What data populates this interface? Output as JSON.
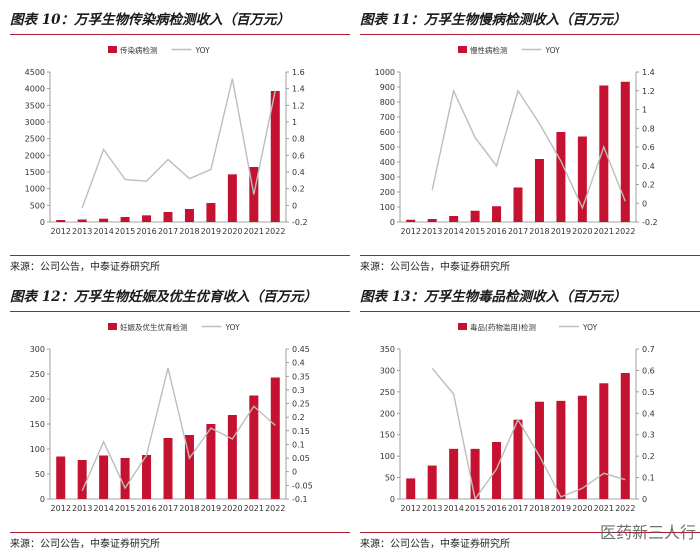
{
  "source_label": "来源：公司公告，中泰证券研究所",
  "watermark": "医药新三人行",
  "chart_data": [
    {
      "type": "bar",
      "title": "图表 10：万孚生物传染病检测收入（百万元）",
      "categories": [
        "2012",
        "2013",
        "2014",
        "2015",
        "2016",
        "2017",
        "2018",
        "2019",
        "2020",
        "2021",
        "2022"
      ],
      "series": [
        {
          "name": "传染病检测",
          "type": "bar",
          "axis": "left",
          "values": [
            60,
            75,
            100,
            150,
            200,
            300,
            390,
            570,
            1430,
            1650,
            3930
          ]
        },
        {
          "name": "YOY",
          "type": "line",
          "axis": "right",
          "values": [
            null,
            -0.03,
            0.67,
            0.31,
            0.29,
            0.55,
            0.32,
            0.43,
            1.52,
            0.13,
            1.38
          ]
        }
      ],
      "left_axis": {
        "min": 0,
        "max": 4500,
        "ticks": [
          "0",
          "500",
          "1000",
          "1500",
          "2000",
          "2500",
          "3000",
          "3500",
          "4000",
          "4500"
        ]
      },
      "right_axis": {
        "min": -0.2,
        "max": 1.6,
        "ticks": [
          "-0.2",
          "0",
          "0.2",
          "0.4",
          "0.6",
          "0.8",
          "1",
          "1.2",
          "1.4",
          "1.6"
        ]
      },
      "colors": {
        "bar": "#c41230",
        "line": "#bdbdbd"
      },
      "legend": "top"
    },
    {
      "type": "bar",
      "title": "图表 11：万孚生物慢病检测收入（百万元）",
      "categories": [
        "2012",
        "2013",
        "2014",
        "2015",
        "2016",
        "2017",
        "2018",
        "2019",
        "2020",
        "2021",
        "2022"
      ],
      "series": [
        {
          "name": "慢性病检测",
          "type": "bar",
          "axis": "left",
          "values": [
            15,
            20,
            40,
            75,
            105,
            230,
            420,
            600,
            570,
            910,
            935
          ]
        },
        {
          "name": "YOY",
          "type": "line",
          "axis": "right",
          "values": [
            null,
            0.14,
            1.2,
            0.7,
            0.4,
            1.2,
            0.85,
            0.45,
            -0.05,
            0.6,
            0.02
          ]
        }
      ],
      "left_axis": {
        "min": 0,
        "max": 1000,
        "ticks": [
          "0",
          "100",
          "200",
          "300",
          "400",
          "500",
          "600",
          "700",
          "800",
          "900",
          "1000"
        ]
      },
      "right_axis": {
        "min": -0.2,
        "max": 1.4,
        "ticks": [
          "-0.2",
          "0",
          "0.2",
          "0.4",
          "0.6",
          "0.8",
          "1",
          "1.2",
          "1.4"
        ]
      },
      "colors": {
        "bar": "#c41230",
        "line": "#bdbdbd"
      },
      "legend": "top"
    },
    {
      "type": "bar",
      "title": "图表 12：万孚生物妊娠及优生优育收入（百万元）",
      "categories": [
        "2012",
        "2013",
        "2014",
        "2015",
        "2016",
        "2017",
        "2018",
        "2019",
        "2020",
        "2021",
        "2022"
      ],
      "series": [
        {
          "name": "妊娠及优生优育检测",
          "type": "bar",
          "axis": "left",
          "values": [
            85,
            78,
            87,
            82,
            88,
            122,
            128,
            150,
            168,
            207,
            243
          ]
        },
        {
          "name": "YOY",
          "type": "line",
          "axis": "right",
          "values": [
            null,
            -0.07,
            0.11,
            -0.06,
            0.06,
            0.38,
            0.05,
            0.16,
            0.12,
            0.24,
            0.17
          ]
        }
      ],
      "left_axis": {
        "min": 0,
        "max": 300,
        "ticks": [
          "0",
          "50",
          "100",
          "150",
          "200",
          "250",
          "300"
        ]
      },
      "right_axis": {
        "min": -0.1,
        "max": 0.45,
        "ticks": [
          "-0.1",
          "-0.05",
          "0",
          "0.05",
          "0.1",
          "0.15",
          "0.2",
          "0.25",
          "0.3",
          "0.35",
          "0.4",
          "0.45"
        ]
      },
      "colors": {
        "bar": "#c41230",
        "line": "#bdbdbd"
      },
      "legend": "top"
    },
    {
      "type": "bar",
      "title": "图表 13：万孚生物毒品检测收入（百万元）",
      "categories": [
        "2012",
        "2013",
        "2014",
        "2015",
        "2016",
        "2017",
        "2018",
        "2019",
        "2020",
        "2021",
        "2022"
      ],
      "series": [
        {
          "name": "毒品(药物滥用)检测",
          "type": "bar",
          "axis": "left",
          "values": [
            48,
            78,
            117,
            117,
            133,
            185,
            227,
            229,
            241,
            270,
            294
          ]
        },
        {
          "name": "YOY",
          "type": "line",
          "axis": "right",
          "values": [
            null,
            0.61,
            0.49,
            0.0,
            0.14,
            0.37,
            0.2,
            0.01,
            0.05,
            0.12,
            0.09
          ]
        }
      ],
      "left_axis": {
        "min": 0,
        "max": 350,
        "ticks": [
          "0",
          "50",
          "100",
          "150",
          "200",
          "250",
          "300",
          "350"
        ]
      },
      "right_axis": {
        "min": 0,
        "max": 0.7,
        "ticks": [
          "0",
          "0.1",
          "0.2",
          "0.3",
          "0.4",
          "0.5",
          "0.6",
          "0.7"
        ]
      },
      "colors": {
        "bar": "#c41230",
        "line": "#bdbdbd"
      },
      "legend": "top"
    }
  ]
}
